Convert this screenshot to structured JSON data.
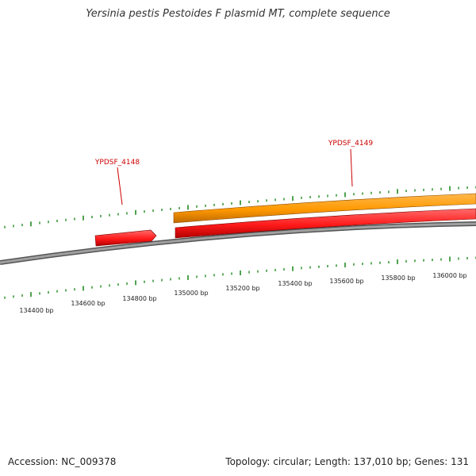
{
  "title": "Yersinia pestis Pestoides F plasmid MT, complete sequence",
  "footer": {
    "accession": "Accession: NC_009378",
    "summary": "Topology: circular; Length: 137,010 bp; Genes: 131"
  },
  "genes": [
    {
      "label": "YPDSF_4148",
      "color": "#ff1a1a"
    },
    {
      "label": "YPDSF_4149",
      "color": "#ff1a1a"
    }
  ],
  "tracks": {
    "orange_color": "#ff9900",
    "red_color": "#ff1a1a",
    "backbone_color": "#777777",
    "tick_color": "#228b22"
  },
  "scale": {
    "labels": [
      "134400 bp",
      "134600 bp",
      "134800 bp",
      "135000 bp",
      "135200 bp",
      "135400 bp",
      "135600 bp",
      "135800 bp",
      "136000 bp"
    ]
  }
}
